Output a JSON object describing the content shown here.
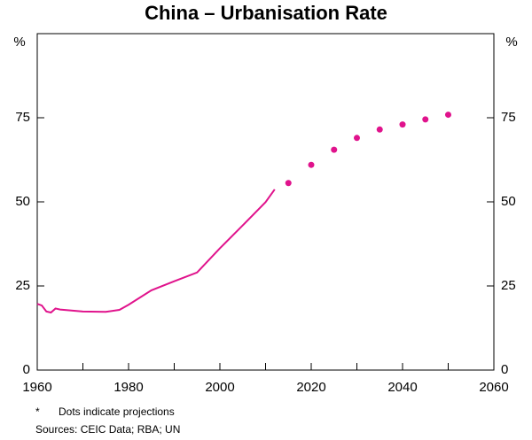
{
  "chart_data": {
    "type": "line",
    "title": "China – Urbanisation Rate",
    "y_unit": "%",
    "xlim": [
      1960,
      2060
    ],
    "xticks": [
      1960,
      1980,
      2000,
      2020,
      2040,
      2060
    ],
    "xminor": [
      1970,
      1990,
      2010,
      2030,
      2050
    ],
    "ylim": [
      0,
      100
    ],
    "yticks": [
      0,
      25,
      50,
      75
    ],
    "y2lim": [
      0,
      100
    ],
    "y2ticks": [
      0,
      25,
      50,
      75
    ],
    "grid": false,
    "series": [
      {
        "color": "#e0138c",
        "marker": "line",
        "x": [
          1960,
          1961,
          1962,
          1963,
          1964,
          1965,
          1970,
          1975,
          1978,
          1980,
          1985,
          1990,
          1995,
          2000,
          2005,
          2010,
          2012
        ],
        "values": [
          19.7,
          19.2,
          17.4,
          17.1,
          18.3,
          18.0,
          17.4,
          17.3,
          17.9,
          19.4,
          23.7,
          26.4,
          29.0,
          36.2,
          43.0,
          49.9,
          53.7
        ]
      },
      {
        "color": "#e0138c",
        "marker": "dot",
        "x": [
          2015,
          2020,
          2025,
          2030,
          2035,
          2040,
          2045,
          2050
        ],
        "values": [
          55.6,
          61.0,
          65.5,
          69.0,
          71.5,
          73.0,
          74.5,
          75.9
        ]
      }
    ],
    "footnote_marker": "*",
    "footnote": "Dots indicate projections",
    "sources": "Sources: CEIC Data; RBA; UN"
  }
}
